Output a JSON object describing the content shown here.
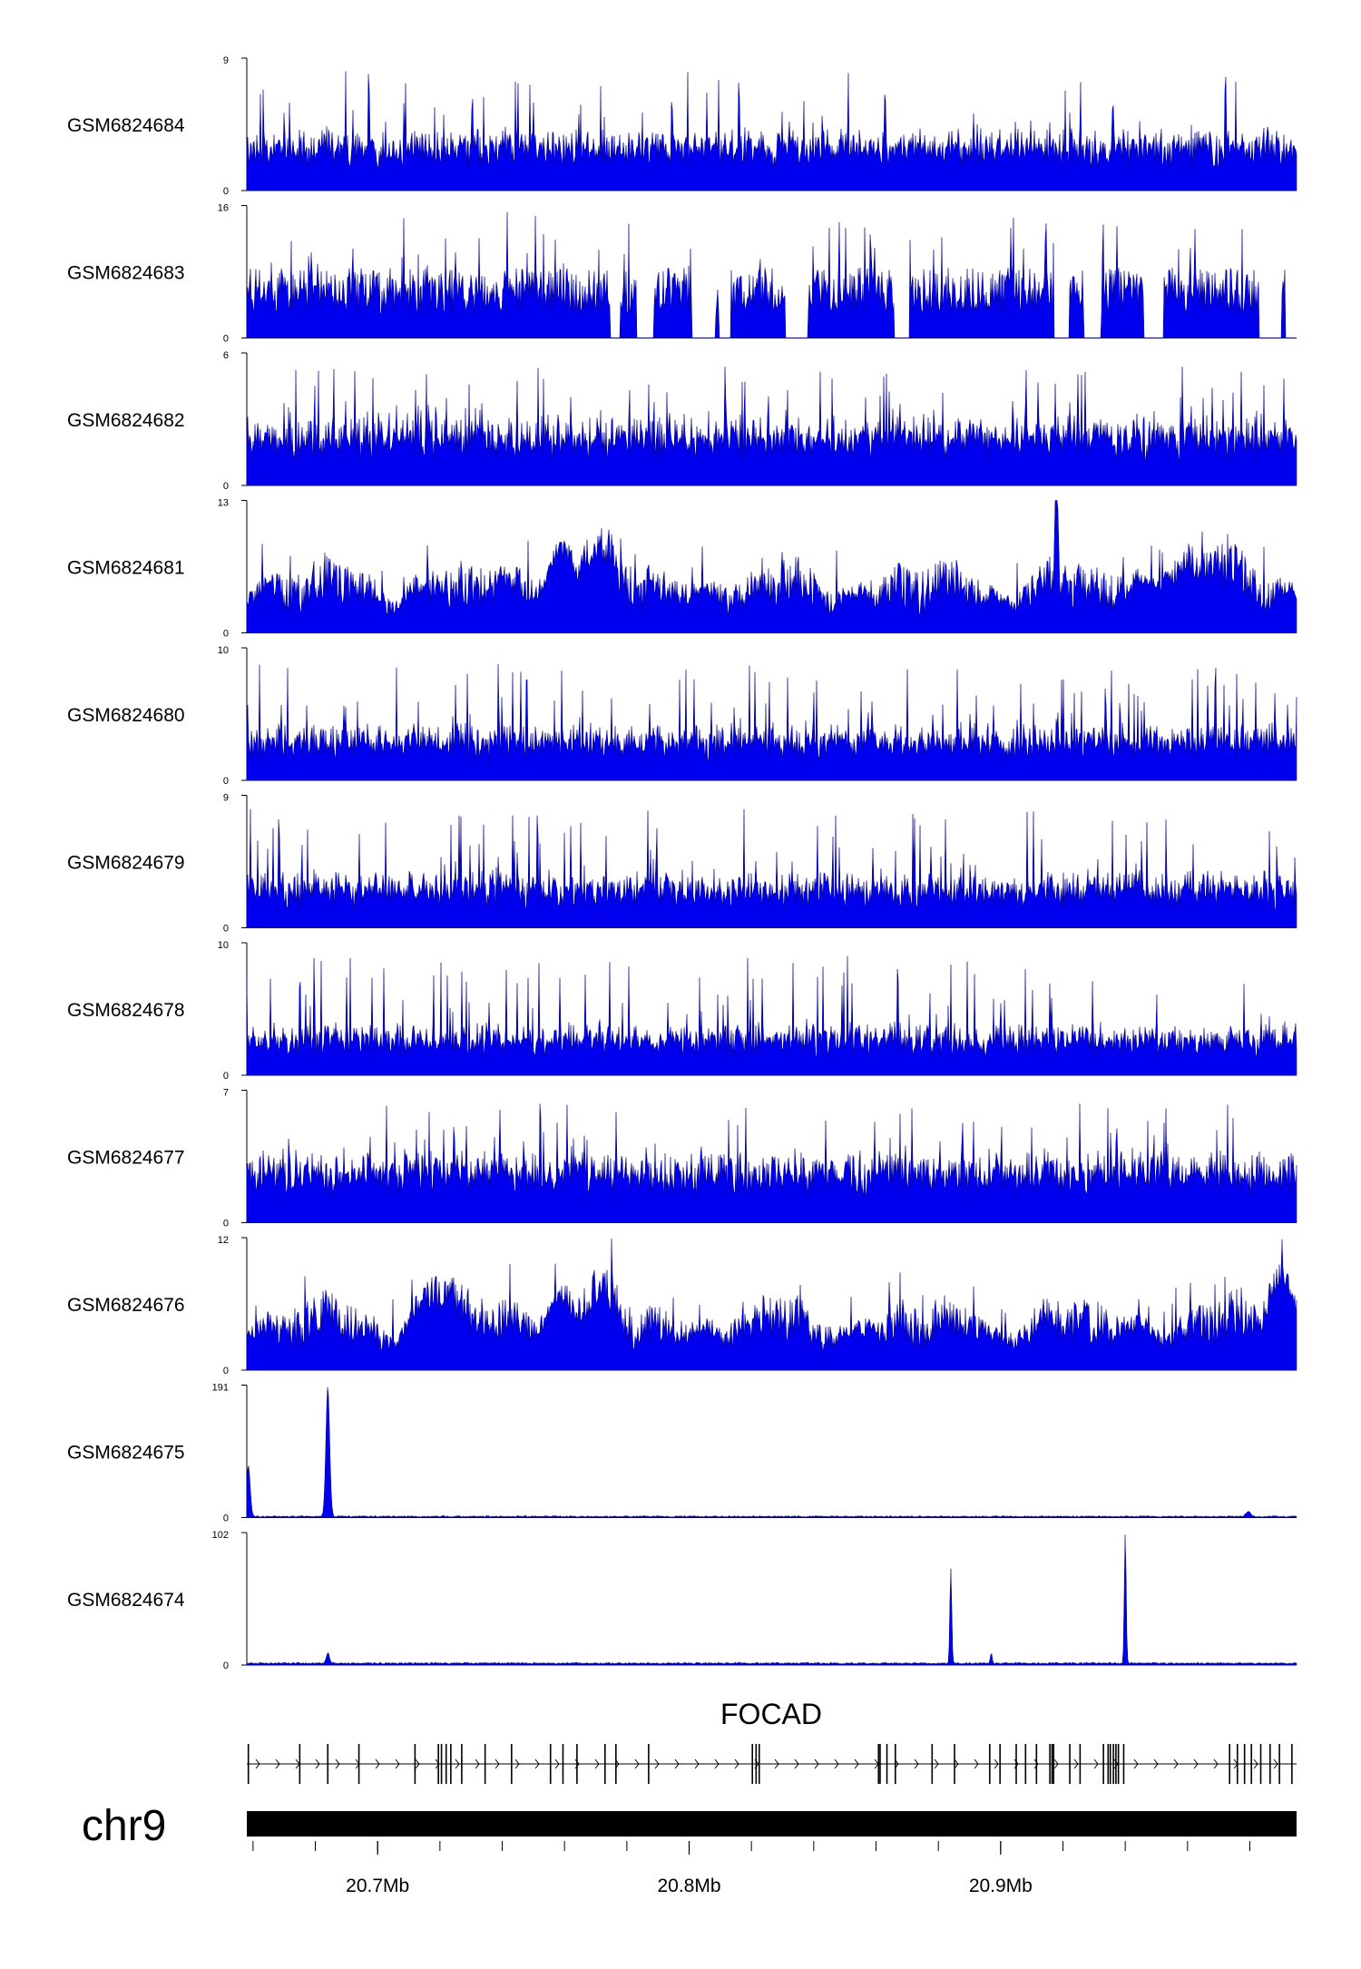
{
  "chart_data": {
    "type": "area",
    "title": "",
    "chromosome": "chr9",
    "gene": "FOCAD",
    "x_range_mb": [
      20.658,
      20.995
    ],
    "x_ticks": [
      {
        "value": 20.7,
        "label": "20.7Mb"
      },
      {
        "value": 20.8,
        "label": "20.8Mb"
      },
      {
        "value": 20.9,
        "label": "20.9Mb"
      }
    ],
    "tracks": [
      {
        "name": "GSM6824684",
        "ymax": "9",
        "ymin": "0",
        "kind": "noise",
        "base": 0.25,
        "noise": 0.35,
        "seed": 684,
        "peaks": []
      },
      {
        "name": "GSM6824683",
        "ymax": "16",
        "ymin": "0",
        "kind": "sparse",
        "base": 0.18,
        "noise": 0.35,
        "seed": 683,
        "peaks": []
      },
      {
        "name": "GSM6824682",
        "ymax": "6",
        "ymin": "0",
        "kind": "noise",
        "base": 0.28,
        "noise": 0.4,
        "seed": 682,
        "peaks": []
      },
      {
        "name": "GSM6824681",
        "ymax": "13",
        "ymin": "0",
        "kind": "hills",
        "base": 0.12,
        "noise": 0.25,
        "seed": 681,
        "peaks": [
          {
            "x": 20.758,
            "h": 0.35,
            "w": 0.004
          },
          {
            "x": 20.77,
            "h": 0.3,
            "w": 0.004
          },
          {
            "x": 20.918,
            "h": 0.95,
            "w": 0.0004
          },
          {
            "x": 20.96,
            "h": 0.2,
            "w": 0.01
          }
        ]
      },
      {
        "name": "GSM6824680",
        "ymax": "10",
        "ymin": "0",
        "kind": "noise",
        "base": 0.22,
        "noise": 0.35,
        "seed": 680,
        "peaks": []
      },
      {
        "name": "GSM6824679",
        "ymax": "9",
        "ymin": "0",
        "kind": "noise",
        "base": 0.22,
        "noise": 0.35,
        "seed": 679,
        "peaks": []
      },
      {
        "name": "GSM6824678",
        "ymax": "10",
        "ymin": "0",
        "kind": "noise",
        "base": 0.2,
        "noise": 0.33,
        "seed": 678,
        "peaks": []
      },
      {
        "name": "GSM6824677",
        "ymax": "7",
        "ymin": "0",
        "kind": "noise",
        "base": 0.3,
        "noise": 0.4,
        "seed": 677,
        "peaks": []
      },
      {
        "name": "GSM6824676",
        "ymax": "12",
        "ymin": "0",
        "kind": "hills",
        "base": 0.12,
        "noise": 0.25,
        "seed": 676,
        "peaks": [
          {
            "x": 20.72,
            "h": 0.25,
            "w": 0.006
          },
          {
            "x": 20.758,
            "h": 0.3,
            "w": 0.004
          },
          {
            "x": 20.77,
            "h": 0.25,
            "w": 0.004
          },
          {
            "x": 20.99,
            "h": 0.4,
            "w": 0.004
          }
        ]
      },
      {
        "name": "GSM6824675",
        "ymax": "191",
        "ymin": "0",
        "kind": "peaks",
        "base": 0.004,
        "noise": 0.01,
        "seed": 675,
        "peaks": [
          {
            "x": 20.6585,
            "h": 0.38,
            "w": 0.0006
          },
          {
            "x": 20.684,
            "h": 0.98,
            "w": 0.0006
          },
          {
            "x": 20.9795,
            "h": 0.04,
            "w": 0.0008
          }
        ]
      },
      {
        "name": "GSM6824674",
        "ymax": "102",
        "ymin": "0",
        "kind": "peaks",
        "base": 0.008,
        "noise": 0.012,
        "seed": 674,
        "peaks": [
          {
            "x": 20.684,
            "h": 0.08,
            "w": 0.0005
          },
          {
            "x": 20.884,
            "h": 0.72,
            "w": 0.0003
          },
          {
            "x": 20.94,
            "h": 0.98,
            "w": 0.0003
          },
          {
            "x": 20.897,
            "h": 0.08,
            "w": 0.0003
          }
        ]
      }
    ],
    "gene_model": {
      "name": "FOCAD",
      "strand": "+",
      "exons_mb": [
        20.6585,
        20.675,
        20.684,
        20.694,
        20.712,
        20.7195,
        20.7205,
        20.722,
        20.7235,
        20.727,
        20.7345,
        20.743,
        20.7555,
        20.7595,
        20.764,
        20.773,
        20.7765,
        20.787,
        20.8203,
        20.8215,
        20.8225,
        20.8608,
        20.8613,
        20.8635,
        20.8662,
        20.878,
        20.8852,
        20.8965,
        20.8998,
        20.905,
        20.908,
        20.9115,
        20.9158,
        20.9165,
        20.917,
        20.9222,
        20.9255,
        20.933,
        20.9345,
        20.9352,
        20.9362,
        20.937,
        20.9378,
        20.9395,
        20.9735,
        20.976,
        20.9783,
        20.9805,
        20.9835,
        20.9865,
        20.9895,
        20.9935
      ]
    },
    "colors": {
      "signal": "#0000ee",
      "signal_edge": "#000080",
      "text": "#000000"
    }
  }
}
